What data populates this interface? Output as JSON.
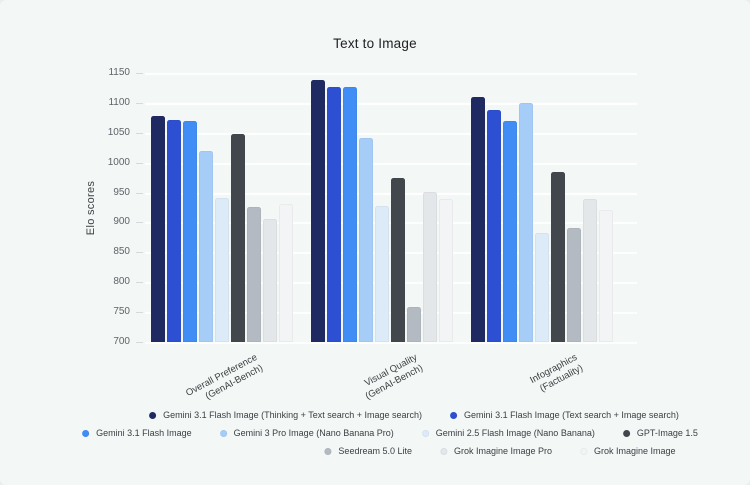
{
  "chart_data": {
    "type": "bar",
    "title": "Text to Image",
    "ylabel": "Elo scores",
    "ylim": [
      700,
      1150
    ],
    "ytick_step": 50,
    "grid": true,
    "legend_position": "bottom",
    "categories": [
      {
        "label": "Overall Preference",
        "sub": "(GenAI-Bench)"
      },
      {
        "label": "Visual Quality",
        "sub": "(GenAI-Bench)"
      },
      {
        "label": "Infographics",
        "sub": "(Factuality)"
      }
    ],
    "series": [
      {
        "name": "Gemini 3.1 Flash Image (Thinking + Text search + Image search)",
        "color": "#1f2a63",
        "values": [
          1078,
          1138,
          1110
        ]
      },
      {
        "name": "Gemini 3.1 Flash Image (Text search + Image search)",
        "color": "#2d4fd2",
        "values": [
          1071,
          1127,
          1088
        ]
      },
      {
        "name": "Gemini 3.1 Flash Image",
        "color": "#3f8df5",
        "values": [
          1070,
          1126,
          1070
        ]
      },
      {
        "name": "Gemini 3 Pro Image (Nano Banana Pro)",
        "color": "#a6cdf8",
        "values": [
          1019,
          1042,
          1100
        ]
      },
      {
        "name": "Gemini 2.5 Flash Image (Nano Banana)",
        "color": "#ddebf8",
        "values": [
          941,
          928,
          882
        ]
      },
      {
        "name": "GPT-Image 1.5",
        "color": "#42464d",
        "values": [
          1048,
          975,
          984
        ]
      },
      {
        "name": "Seedream 5.0 Lite",
        "color": "#b4bac2",
        "values": [
          926,
          759,
          890
        ]
      },
      {
        "name": "Grok Imagine Image Pro",
        "color": "#e4e7ea",
        "values": [
          905,
          951,
          940
        ]
      },
      {
        "name": "Grok Imagine Image",
        "color": "#f2f4f6",
        "values": [
          931,
          940,
          920
        ]
      }
    ],
    "legend_rows": [
      [
        0,
        1
      ],
      [
        2,
        3,
        4,
        5
      ],
      [
        6,
        7,
        8
      ]
    ]
  }
}
